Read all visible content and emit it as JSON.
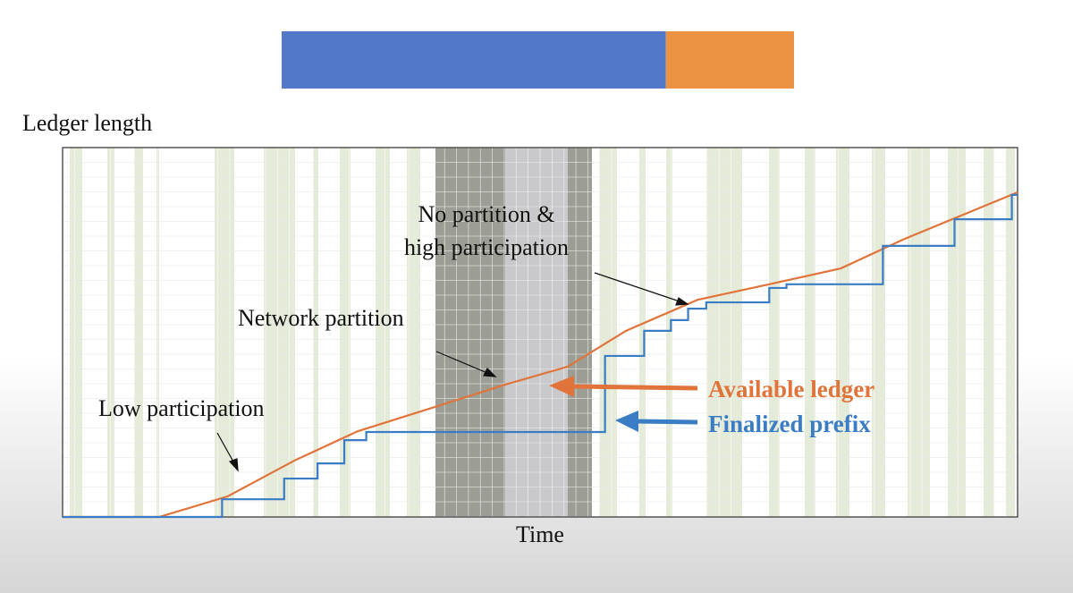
{
  "chart_data": [
    {
      "type": "stacked-bar",
      "series": [
        {
          "color": "#5279c9",
          "values": [
            75
          ]
        },
        {
          "color": "#eb9243",
          "values": [
            25
          ]
        }
      ],
      "xlim": [
        0,
        100
      ]
    },
    {
      "type": "line",
      "y_label": "Ledger length",
      "x_label": "Time",
      "xlim": [
        0,
        100
      ],
      "ylim": [
        0,
        100
      ],
      "annotations": [
        "Low participation",
        "Network partition",
        "No partition &",
        "high participation"
      ],
      "series": [
        {
          "name": "Available ledger",
          "color": "#e0743a",
          "x": [
            0,
            10.1,
            17.3,
            24.3,
            30.9,
            39.0,
            46.3,
            52.9,
            59.0,
            66.5,
            74.0,
            81.5,
            88.0,
            100
          ],
          "values": [
            0,
            0,
            5.6,
            15.3,
            23.2,
            29.8,
            35.8,
            40.7,
            50.4,
            58.8,
            63.0,
            67.3,
            75.1,
            87.9
          ]
        },
        {
          "name": "Finalized prefix",
          "color": "#3a7dc4",
          "x": [
            0,
            16.7,
            16.7,
            23.2,
            23.2,
            26.7,
            26.7,
            29.5,
            29.5,
            31.8,
            31.8,
            56.8,
            56.8,
            60.9,
            60.9,
            63.7,
            63.7,
            65.5,
            65.5,
            67.4,
            67.4,
            74.0,
            74.0,
            75.8,
            75.8,
            85.9,
            85.9,
            93.4,
            93.4,
            99.4,
            99.4,
            100
          ],
          "values": [
            0,
            0,
            4.8,
            4.8,
            10.4,
            10.4,
            14.5,
            14.5,
            20.8,
            20.8,
            23.0,
            23.0,
            43.6,
            43.6,
            50.4,
            50.4,
            53.3,
            53.3,
            56.4,
            56.4,
            58.1,
            58.1,
            62.0,
            62.0,
            63.0,
            63.0,
            73.4,
            73.4,
            80.6,
            80.6,
            87.2,
            87.2
          ]
        }
      ]
    }
  ]
}
